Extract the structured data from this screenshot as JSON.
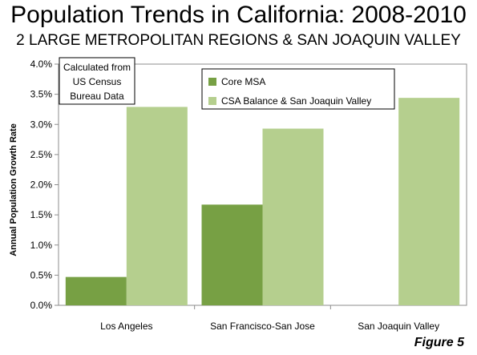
{
  "chart_data": {
    "type": "bar",
    "title": "Population Trends in California: 2008-2010",
    "subtitle": "2 LARGE METROPOLITAN REGIONS & SAN JOAQUIN VALLEY",
    "xlabel": "",
    "ylabel": "Annual Population Growth Rate",
    "ylim": [
      0,
      4.0
    ],
    "y_ticks": [
      "0.0%",
      "0.5%",
      "1.0%",
      "1.5%",
      "2.0%",
      "2.5%",
      "3.0%",
      "3.5%",
      "4.0%"
    ],
    "y_tick_values": [
      0,
      0.5,
      1.0,
      1.5,
      2.0,
      2.5,
      3.0,
      3.5,
      4.0
    ],
    "categories": [
      "Los Angeles",
      "San Francisco-San Jose",
      "San Joaquin Valley"
    ],
    "series": [
      {
        "name": "Core MSA",
        "color": "#77a044",
        "values": [
          0.47,
          1.67,
          null
        ]
      },
      {
        "name": "CSA Balance & San Joaquin Valley",
        "color": "#b5cf8e",
        "values": [
          3.29,
          2.93,
          3.44
        ]
      }
    ],
    "grid": false,
    "legend_position": "top-center",
    "annotation_lines": [
      "Calculated from",
      "US Census",
      "Bureau Data"
    ]
  },
  "figure_label": "Figure 5"
}
